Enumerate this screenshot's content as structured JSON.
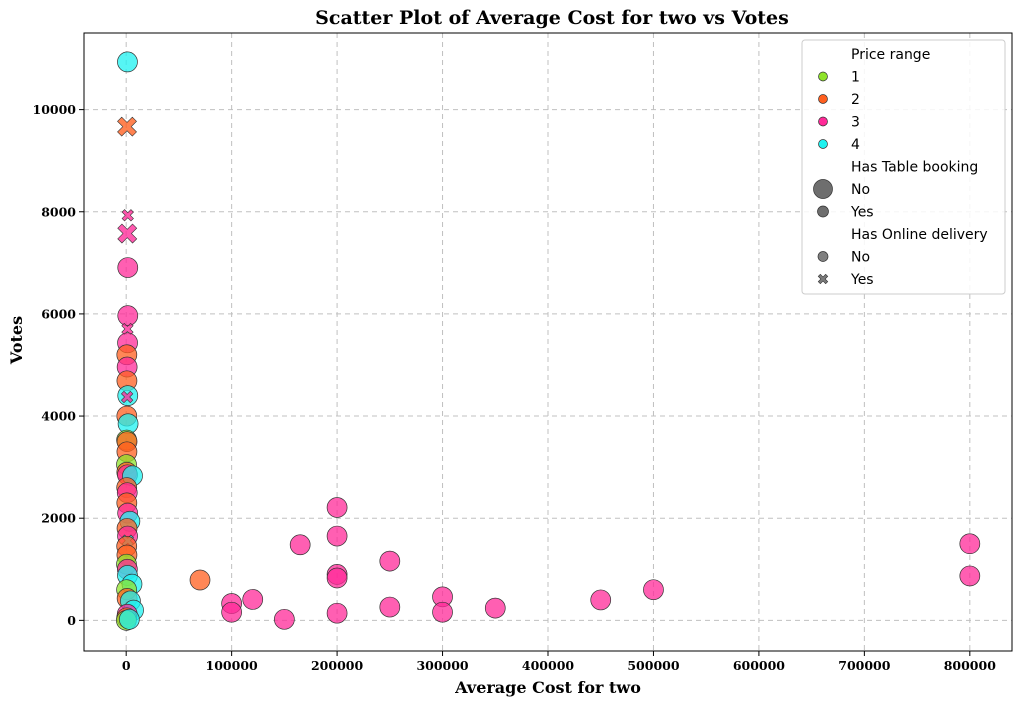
{
  "chart_data": {
    "type": "scatter",
    "title": "Scatter Plot of Average Cost for two vs Votes",
    "xlabel": "Average Cost for two",
    "ylabel": "Votes",
    "xlim": [
      -40000,
      840000
    ],
    "ylim": [
      -600,
      11500
    ],
    "xticks": [
      0,
      100000,
      200000,
      300000,
      400000,
      500000,
      600000,
      700000,
      800000
    ],
    "yticks": [
      0,
      2000,
      4000,
      6000,
      8000,
      10000
    ],
    "grid": true,
    "legend_position": "top-right",
    "colors": {
      "1": "#8fe32a",
      "2": "#ff5f1f",
      "3": "#ff2a98",
      "4": "#1ef2f0"
    },
    "legend": {
      "hue_title": "Price range",
      "hue_entries": [
        {
          "label": "1",
          "key": "1"
        },
        {
          "label": "2",
          "key": "2"
        },
        {
          "label": "3",
          "key": "3"
        },
        {
          "label": "4",
          "key": "4"
        }
      ],
      "size_title": "Has Table booking",
      "size_entries": [
        {
          "label": "No",
          "size": "large"
        },
        {
          "label": "Yes",
          "size": "small"
        }
      ],
      "style_title": "Has Online delivery",
      "style_entries": [
        {
          "label": "No",
          "marker": "circle"
        },
        {
          "label": "Yes",
          "marker": "x"
        }
      ]
    },
    "points": [
      {
        "x": 1200,
        "y": 10934,
        "price_range": "4",
        "table_booking": "No",
        "online_delivery": "No"
      },
      {
        "x": 800,
        "y": 9667,
        "price_range": "2",
        "table_booking": "No",
        "online_delivery": "Yes"
      },
      {
        "x": 1500,
        "y": 7931,
        "price_range": "3",
        "table_booking": "Yes",
        "online_delivery": "Yes"
      },
      {
        "x": 1000,
        "y": 7574,
        "price_range": "3",
        "table_booking": "No",
        "online_delivery": "Yes"
      },
      {
        "x": 1500,
        "y": 6907,
        "price_range": "3",
        "table_booking": "No",
        "online_delivery": "No"
      },
      {
        "x": 1500,
        "y": 5966,
        "price_range": "3",
        "table_booking": "No",
        "online_delivery": "No"
      },
      {
        "x": 1200,
        "y": 5705,
        "price_range": "3",
        "table_booking": "Yes",
        "online_delivery": "Yes"
      },
      {
        "x": 1300,
        "y": 5434,
        "price_range": "3",
        "table_booking": "No",
        "online_delivery": "No"
      },
      {
        "x": 600,
        "y": 5200,
        "price_range": "2",
        "table_booking": "No",
        "online_delivery": "No"
      },
      {
        "x": 900,
        "y": 4960,
        "price_range": "3",
        "table_booking": "No",
        "online_delivery": "No"
      },
      {
        "x": 700,
        "y": 4690,
        "price_range": "2",
        "table_booking": "No",
        "online_delivery": "No"
      },
      {
        "x": 1500,
        "y": 4400,
        "price_range": "4",
        "table_booking": "No",
        "online_delivery": "No"
      },
      {
        "x": 900,
        "y": 4373,
        "price_range": "3",
        "table_booking": "Yes",
        "online_delivery": "Yes"
      },
      {
        "x": 600,
        "y": 4000,
        "price_range": "2",
        "table_booking": "No",
        "online_delivery": "No"
      },
      {
        "x": 1800,
        "y": 3850,
        "price_range": "4",
        "table_booking": "No",
        "online_delivery": "No"
      },
      {
        "x": 400,
        "y": 3530,
        "price_range": "1",
        "table_booking": "No",
        "online_delivery": "No"
      },
      {
        "x": 800,
        "y": 3500,
        "price_range": "2",
        "table_booking": "No",
        "online_delivery": "No"
      },
      {
        "x": 700,
        "y": 3300,
        "price_range": "2",
        "table_booking": "No",
        "online_delivery": "No"
      },
      {
        "x": 300,
        "y": 3050,
        "price_range": "1",
        "table_booking": "No",
        "online_delivery": "No"
      },
      {
        "x": 600,
        "y": 2900,
        "price_range": "2",
        "table_booking": "No",
        "online_delivery": "No"
      },
      {
        "x": 1200,
        "y": 2850,
        "price_range": "3",
        "table_booking": "No",
        "online_delivery": "No"
      },
      {
        "x": 6000,
        "y": 2830,
        "price_range": "4",
        "table_booking": "No",
        "online_delivery": "No"
      },
      {
        "x": 500,
        "y": 2600,
        "price_range": "2",
        "table_booking": "No",
        "online_delivery": "No"
      },
      {
        "x": 1000,
        "y": 2500,
        "price_range": "3",
        "table_booking": "No",
        "online_delivery": "No"
      },
      {
        "x": 600,
        "y": 2300,
        "price_range": "2",
        "table_booking": "No",
        "online_delivery": "No"
      },
      {
        "x": 1400,
        "y": 2100,
        "price_range": "3",
        "table_booking": "No",
        "online_delivery": "No"
      },
      {
        "x": 3500,
        "y": 1940,
        "price_range": "4",
        "table_booking": "No",
        "online_delivery": "No"
      },
      {
        "x": 800,
        "y": 1800,
        "price_range": "2",
        "table_booking": "No",
        "online_delivery": "No"
      },
      {
        "x": 1300,
        "y": 1650,
        "price_range": "3",
        "table_booking": "No",
        "online_delivery": "No"
      },
      {
        "x": 1500,
        "y": 1560,
        "price_range": "4",
        "table_booking": "Yes",
        "online_delivery": "Yes"
      },
      {
        "x": 500,
        "y": 1450,
        "price_range": "2",
        "table_booking": "No",
        "online_delivery": "No"
      },
      {
        "x": 700,
        "y": 1280,
        "price_range": "2",
        "table_booking": "No",
        "online_delivery": "No"
      },
      {
        "x": 300,
        "y": 1100,
        "price_range": "1",
        "table_booking": "No",
        "online_delivery": "No"
      },
      {
        "x": 1100,
        "y": 1000,
        "price_range": "3",
        "table_booking": "No",
        "online_delivery": "No"
      },
      {
        "x": 1200,
        "y": 880,
        "price_range": "4",
        "table_booking": "No",
        "online_delivery": "No"
      },
      {
        "x": 5500,
        "y": 710,
        "price_range": "4",
        "table_booking": "No",
        "online_delivery": "No"
      },
      {
        "x": 400,
        "y": 600,
        "price_range": "1",
        "table_booking": "No",
        "online_delivery": "No"
      },
      {
        "x": 900,
        "y": 430,
        "price_range": "2",
        "table_booking": "No",
        "online_delivery": "No"
      },
      {
        "x": 4000,
        "y": 380,
        "price_range": "4",
        "table_booking": "No",
        "online_delivery": "No"
      },
      {
        "x": 7000,
        "y": 200,
        "price_range": "4",
        "table_booking": "No",
        "online_delivery": "No"
      },
      {
        "x": 1000,
        "y": 120,
        "price_range": "3",
        "table_booking": "No",
        "online_delivery": "No"
      },
      {
        "x": 500,
        "y": 50,
        "price_range": "2",
        "table_booking": "No",
        "online_delivery": "No"
      },
      {
        "x": 200,
        "y": 0,
        "price_range": "1",
        "table_booking": "No",
        "online_delivery": "No"
      },
      {
        "x": 3000,
        "y": 20,
        "price_range": "4",
        "table_booking": "No",
        "online_delivery": "No"
      },
      {
        "x": 70000,
        "y": 790,
        "price_range": "2",
        "table_booking": "No",
        "online_delivery": "No"
      },
      {
        "x": 100000,
        "y": 330,
        "price_range": "3",
        "table_booking": "No",
        "online_delivery": "No"
      },
      {
        "x": 100000,
        "y": 160,
        "price_range": "3",
        "table_booking": "No",
        "online_delivery": "No"
      },
      {
        "x": 120000,
        "y": 410,
        "price_range": "3",
        "table_booking": "No",
        "online_delivery": "No"
      },
      {
        "x": 150000,
        "y": 20,
        "price_range": "3",
        "table_booking": "No",
        "online_delivery": "No"
      },
      {
        "x": 165000,
        "y": 1480,
        "price_range": "3",
        "table_booking": "No",
        "online_delivery": "No"
      },
      {
        "x": 200000,
        "y": 2210,
        "price_range": "3",
        "table_booking": "No",
        "online_delivery": "No"
      },
      {
        "x": 200000,
        "y": 1650,
        "price_range": "3",
        "table_booking": "No",
        "online_delivery": "No"
      },
      {
        "x": 200000,
        "y": 900,
        "price_range": "3",
        "table_booking": "No",
        "online_delivery": "No"
      },
      {
        "x": 200000,
        "y": 830,
        "price_range": "3",
        "table_booking": "No",
        "online_delivery": "No"
      },
      {
        "x": 200000,
        "y": 140,
        "price_range": "3",
        "table_booking": "No",
        "online_delivery": "No"
      },
      {
        "x": 250000,
        "y": 1160,
        "price_range": "3",
        "table_booking": "No",
        "online_delivery": "No"
      },
      {
        "x": 250000,
        "y": 260,
        "price_range": "3",
        "table_booking": "No",
        "online_delivery": "No"
      },
      {
        "x": 300000,
        "y": 460,
        "price_range": "3",
        "table_booking": "No",
        "online_delivery": "No"
      },
      {
        "x": 300000,
        "y": 160,
        "price_range": "3",
        "table_booking": "No",
        "online_delivery": "No"
      },
      {
        "x": 350000,
        "y": 240,
        "price_range": "3",
        "table_booking": "No",
        "online_delivery": "No"
      },
      {
        "x": 450000,
        "y": 400,
        "price_range": "3",
        "table_booking": "No",
        "online_delivery": "No"
      },
      {
        "x": 500000,
        "y": 600,
        "price_range": "3",
        "table_booking": "No",
        "online_delivery": "No"
      },
      {
        "x": 800000,
        "y": 1500,
        "price_range": "3",
        "table_booking": "No",
        "online_delivery": "No"
      },
      {
        "x": 800000,
        "y": 870,
        "price_range": "3",
        "table_booking": "No",
        "online_delivery": "No"
      }
    ]
  }
}
